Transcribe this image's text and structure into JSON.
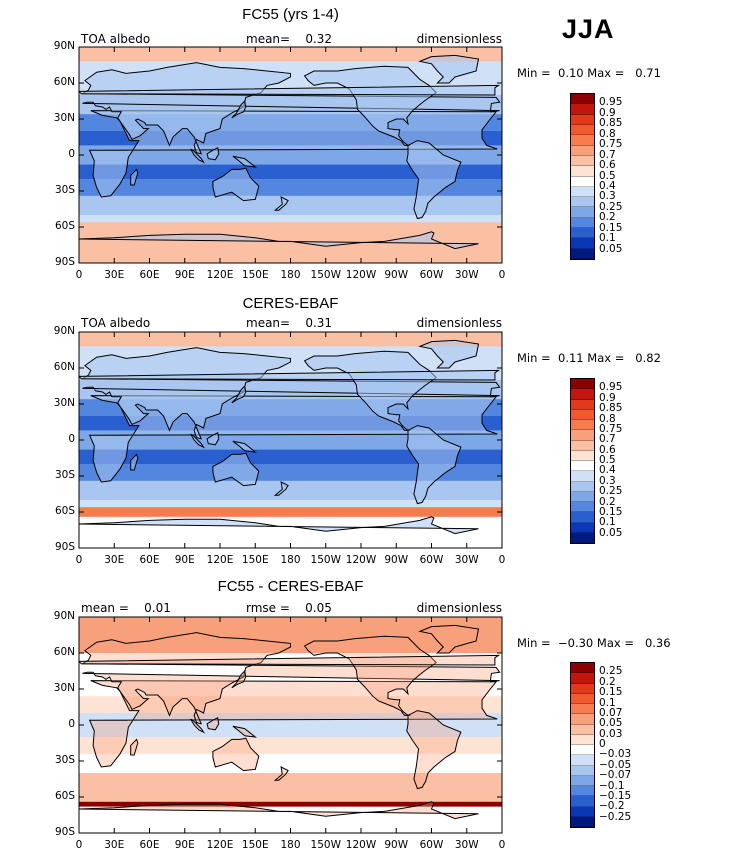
{
  "season": "JJA",
  "panels": [
    {
      "title": "FC55 (yrs 1-4)",
      "left_label": "TOA albedo",
      "center_label": "mean=",
      "center_value": "0.32",
      "right_label": "dimensionless",
      "min_label": "Min =",
      "min_value": "0.10",
      "max_label": "Max =",
      "max_value": "0.71",
      "colorbar_labels": [
        "0.95",
        "0.9",
        "0.85",
        "0.8",
        "0.75",
        "0.7",
        "0.6",
        "0.5",
        "0.4",
        "0.3",
        "0.25",
        "0.2",
        "0.15",
        "0.1",
        "0.05"
      ],
      "colorbar_colors": [
        "#8b0000",
        "#c2150d",
        "#e0391b",
        "#f05a2e",
        "#f67c4f",
        "#f8a07c",
        "#fac0a5",
        "#fde3d4",
        "#ffffff",
        "#cfe0f7",
        "#a8c6f0",
        "#7ea7e8",
        "#5386de",
        "#2a5fcf",
        "#0a37b5",
        "#001a80"
      ],
      "regime": "abs"
    },
    {
      "title": "CERES-EBAF",
      "left_label": "TOA albedo",
      "center_label": "mean=",
      "center_value": "0.31",
      "right_label": "dimensionless",
      "min_label": "Min =",
      "min_value": "0.11",
      "max_label": "Max =",
      "max_value": "0.82",
      "colorbar_labels": [
        "0.95",
        "0.9",
        "0.85",
        "0.8",
        "0.75",
        "0.7",
        "0.6",
        "0.5",
        "0.4",
        "0.3",
        "0.25",
        "0.2",
        "0.15",
        "0.1",
        "0.05"
      ],
      "colorbar_colors": [
        "#8b0000",
        "#c2150d",
        "#e0391b",
        "#f05a2e",
        "#f67c4f",
        "#f8a07c",
        "#fac0a5",
        "#fde3d4",
        "#ffffff",
        "#cfe0f7",
        "#a8c6f0",
        "#7ea7e8",
        "#5386de",
        "#2a5fcf",
        "#0a37b5",
        "#001a80"
      ],
      "regime": "obs"
    },
    {
      "title": "FC55 - CERES-EBAF",
      "left_label": "mean =",
      "left_value": "0.01",
      "center_label": "rmse =",
      "center_value": "0.05",
      "right_label": "dimensionless",
      "min_label": "Min =",
      "min_value": "−0.30",
      "max_label": "Max =",
      "max_value": "0.36",
      "colorbar_labels": [
        "0.25",
        "0.2",
        "0.15",
        "0.1",
        "0.07",
        "0.05",
        "0.03",
        "0",
        "−0.03",
        "−0.05",
        "−0.07",
        "−0.1",
        "−0.15",
        "−0.2",
        "−0.25"
      ],
      "colorbar_colors": [
        "#8b0000",
        "#c2150d",
        "#e0391b",
        "#f05a2e",
        "#f67c4f",
        "#f8a07c",
        "#fac0a5",
        "#fde3d4",
        "#ffffff",
        "#cfe0f7",
        "#a8c6f0",
        "#7ea7e8",
        "#5386de",
        "#2a5fcf",
        "#0a37b5",
        "#001a80"
      ],
      "regime": "diff"
    }
  ],
  "lat_ticks": [
    "90N",
    "60N",
    "30N",
    "0",
    "30S",
    "60S",
    "90S"
  ],
  "lon_ticks": [
    "0",
    "30E",
    "60E",
    "90E",
    "120E",
    "150E",
    "180",
    "150W",
    "120W",
    "90W",
    "60W",
    "30W",
    "0"
  ],
  "colors": {
    "ocean_tropics": "#7ea7e8",
    "ocean_deep_blue": "#2a5fcf",
    "land_outline": "#000000",
    "ice": "#fac0a5"
  }
}
